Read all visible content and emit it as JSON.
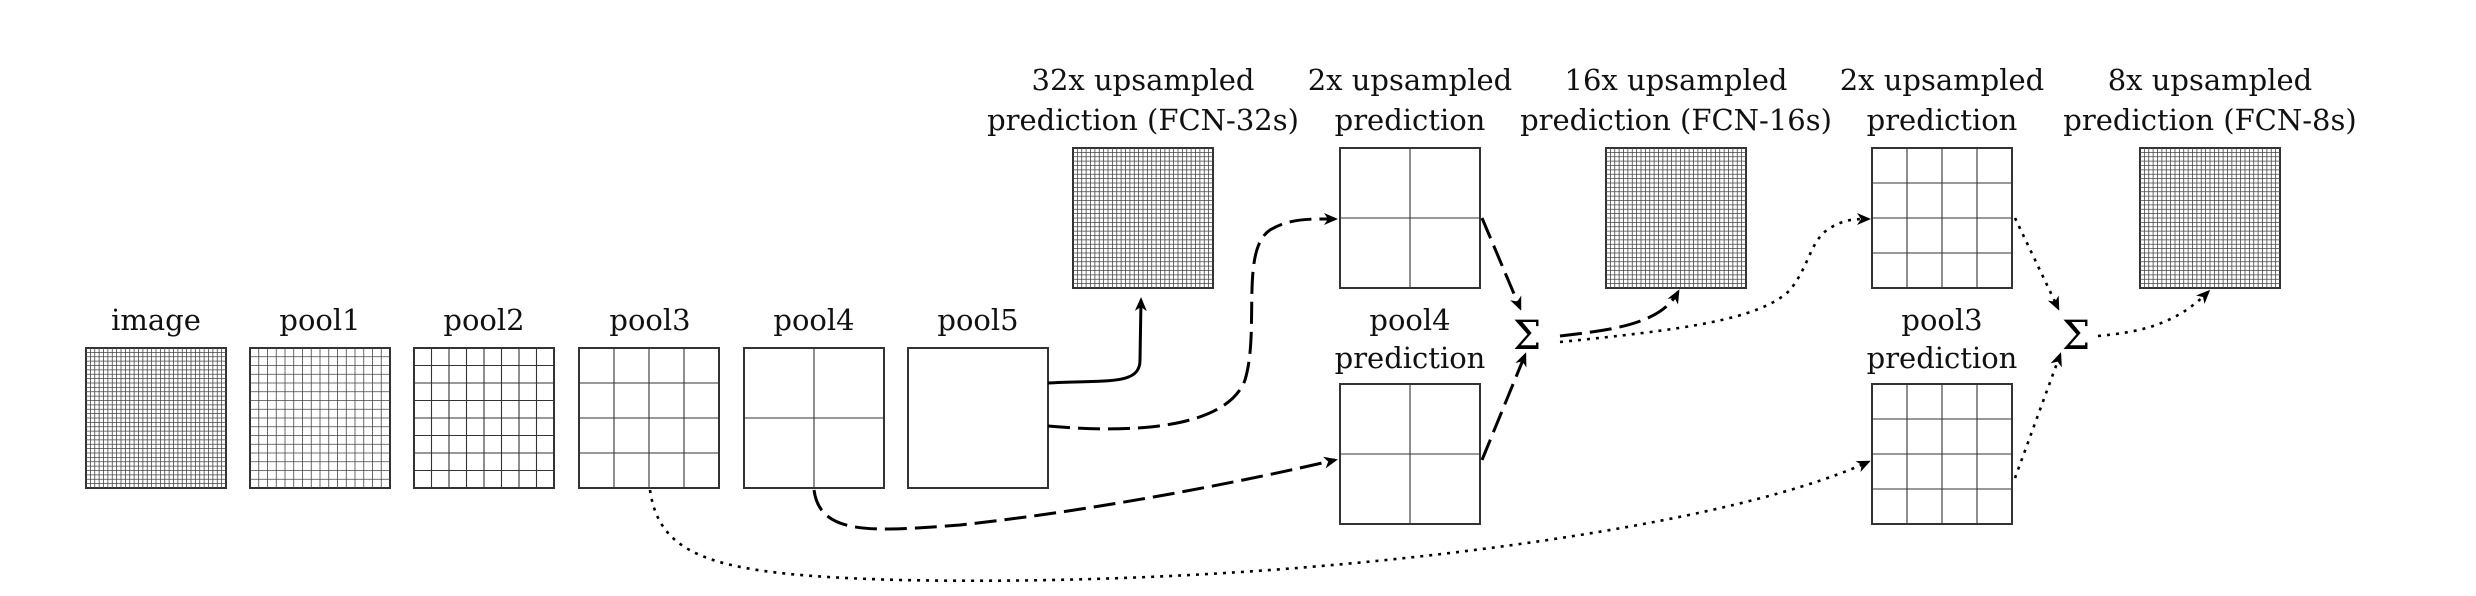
{
  "labels": {
    "image": "image",
    "pool1": "pool1",
    "pool2": "pool2",
    "pool3": "pool3",
    "pool4": "pool4",
    "pool5": "pool5",
    "fcn32_line1": "32x upsampled",
    "fcn32_line2": "prediction (FCN-32s)",
    "up2a_line1": "2x upsampled",
    "up2a_line2": "prediction",
    "pool4pred_line1": "pool4",
    "pool4pred_line2": "prediction",
    "fcn16_line1": "16x upsampled",
    "fcn16_line2": "prediction (FCN-16s)",
    "up2b_line1": "2x upsampled",
    "up2b_line2": "prediction",
    "pool3pred_line1": "pool3",
    "pool3pred_line2": "prediction",
    "fcn8_line1": "8x upsampled",
    "fcn8_line2": "prediction (FCN-8s)",
    "sum_symbol": "Σ"
  },
  "grids": {
    "image": 32,
    "pool1": 16,
    "pool2": 8,
    "pool3": 4,
    "pool4": 2,
    "pool5": 1,
    "fcn32": 32,
    "up2a": 2,
    "pool4pred": 2,
    "fcn16": 32,
    "up2b": 4,
    "pool3pred": 4,
    "fcn8": 32
  }
}
